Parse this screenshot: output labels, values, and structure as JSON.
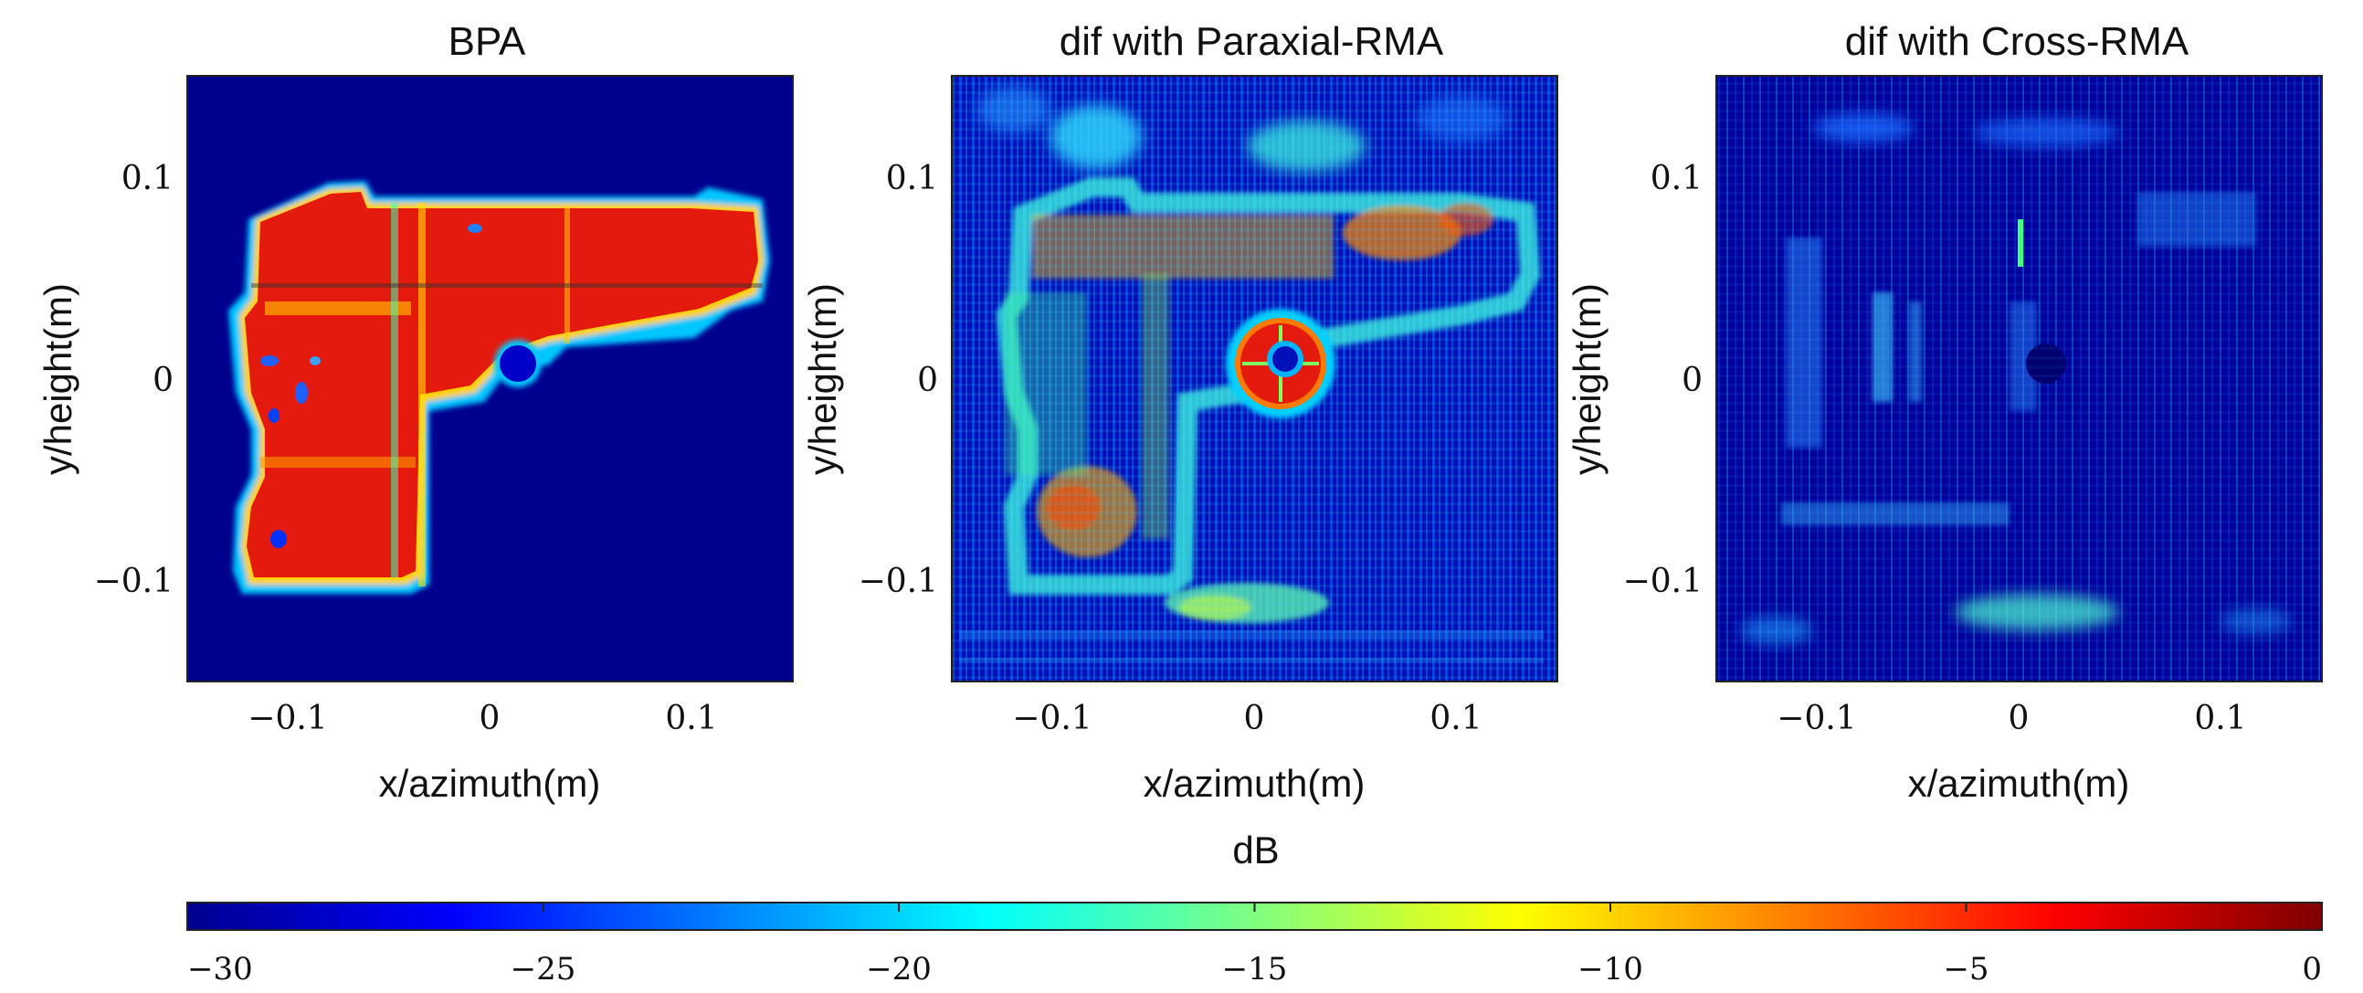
{
  "figure": {
    "colorbar_label": "dB",
    "colormap": "jet"
  },
  "chart_data": [
    {
      "type": "heatmap",
      "title": "BPA",
      "xlabel": "x/azimuth(m)",
      "ylabel": "y/height(m)",
      "xlim": [
        -0.15,
        0.15
      ],
      "ylim": [
        -0.15,
        0.15
      ],
      "xticks": [
        -0.1,
        0,
        0.1
      ],
      "xtick_labels": [
        "−0.1",
        "0",
        "0.1"
      ],
      "yticks": [
        0.1,
        0,
        -0.1
      ],
      "ytick_labels": [
        "0.1",
        "0",
        "−0.1"
      ],
      "clim": [
        -30,
        0
      ],
      "background_db": -30,
      "content": "pistol-shaped target, strong returns (about -3 dB) across grip, slide and barrel, with a hole near x=0.01, y=0.01"
    },
    {
      "type": "heatmap",
      "title": "dif with Paraxial-RMA",
      "xlabel": "x/azimuth(m)",
      "ylabel": "y/height(m)",
      "xlim": [
        -0.15,
        0.15
      ],
      "ylim": [
        -0.15,
        0.15
      ],
      "xticks": [
        -0.1,
        0,
        0.1
      ],
      "xtick_labels": [
        "−0.1",
        "0",
        "0.1"
      ],
      "yticks": [
        0.1,
        0,
        -0.1
      ],
      "ytick_labels": [
        "0.1",
        "0",
        "−0.1"
      ],
      "clim": [
        -30,
        0
      ],
      "background_db": -27,
      "content": "difference image: ring around the hole near -5 dB, scattered -15 to -8 dB residuals along the target outline"
    },
    {
      "type": "heatmap",
      "title": "dif with Cross-RMA",
      "xlabel": "x/azimuth(m)",
      "ylabel": "y/height(m)",
      "xlim": [
        -0.15,
        0.15
      ],
      "ylim": [
        -0.15,
        0.15
      ],
      "xticks": [
        -0.1,
        0,
        0.1
      ],
      "xtick_labels": [
        "−0.1",
        "0",
        "0.1"
      ],
      "yticks": [
        0.1,
        0,
        -0.1
      ],
      "ytick_labels": [
        "0.1",
        "0",
        "−0.1"
      ],
      "clim": [
        -30,
        0
      ],
      "background_db": -29,
      "content": "difference image: mostly below -20 dB with faint vertical streaks and a patch near y=-0.12"
    }
  ],
  "colorbar": {
    "ticks": [
      -30,
      -25,
      -20,
      -15,
      -10,
      -5,
      0
    ],
    "tick_labels": [
      "−30",
      "−25",
      "−20",
      "−15",
      "−10",
      "−5",
      "0"
    ]
  }
}
